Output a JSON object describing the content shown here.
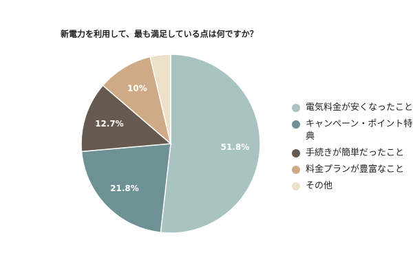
{
  "chart_data": {
    "type": "pie",
    "title": "新電力を利用して、最も満足している点は何ですか？",
    "categories": [
      "電気料金が安くなったこと",
      "キャンペーン・ポイント特典",
      "手続きが簡単だったこと",
      "料金プランが豊富なこと",
      "その他"
    ],
    "values": [
      51.8,
      21.8,
      12.7,
      10,
      3.7
    ],
    "value_labels": [
      "51.8%",
      "21.8%",
      "12.7%",
      "10%",
      null
    ],
    "colors": [
      "#a9c2c2",
      "#6e9196",
      "#665a50",
      "#cfaa86",
      "#ede0c8"
    ],
    "legend": "right"
  }
}
